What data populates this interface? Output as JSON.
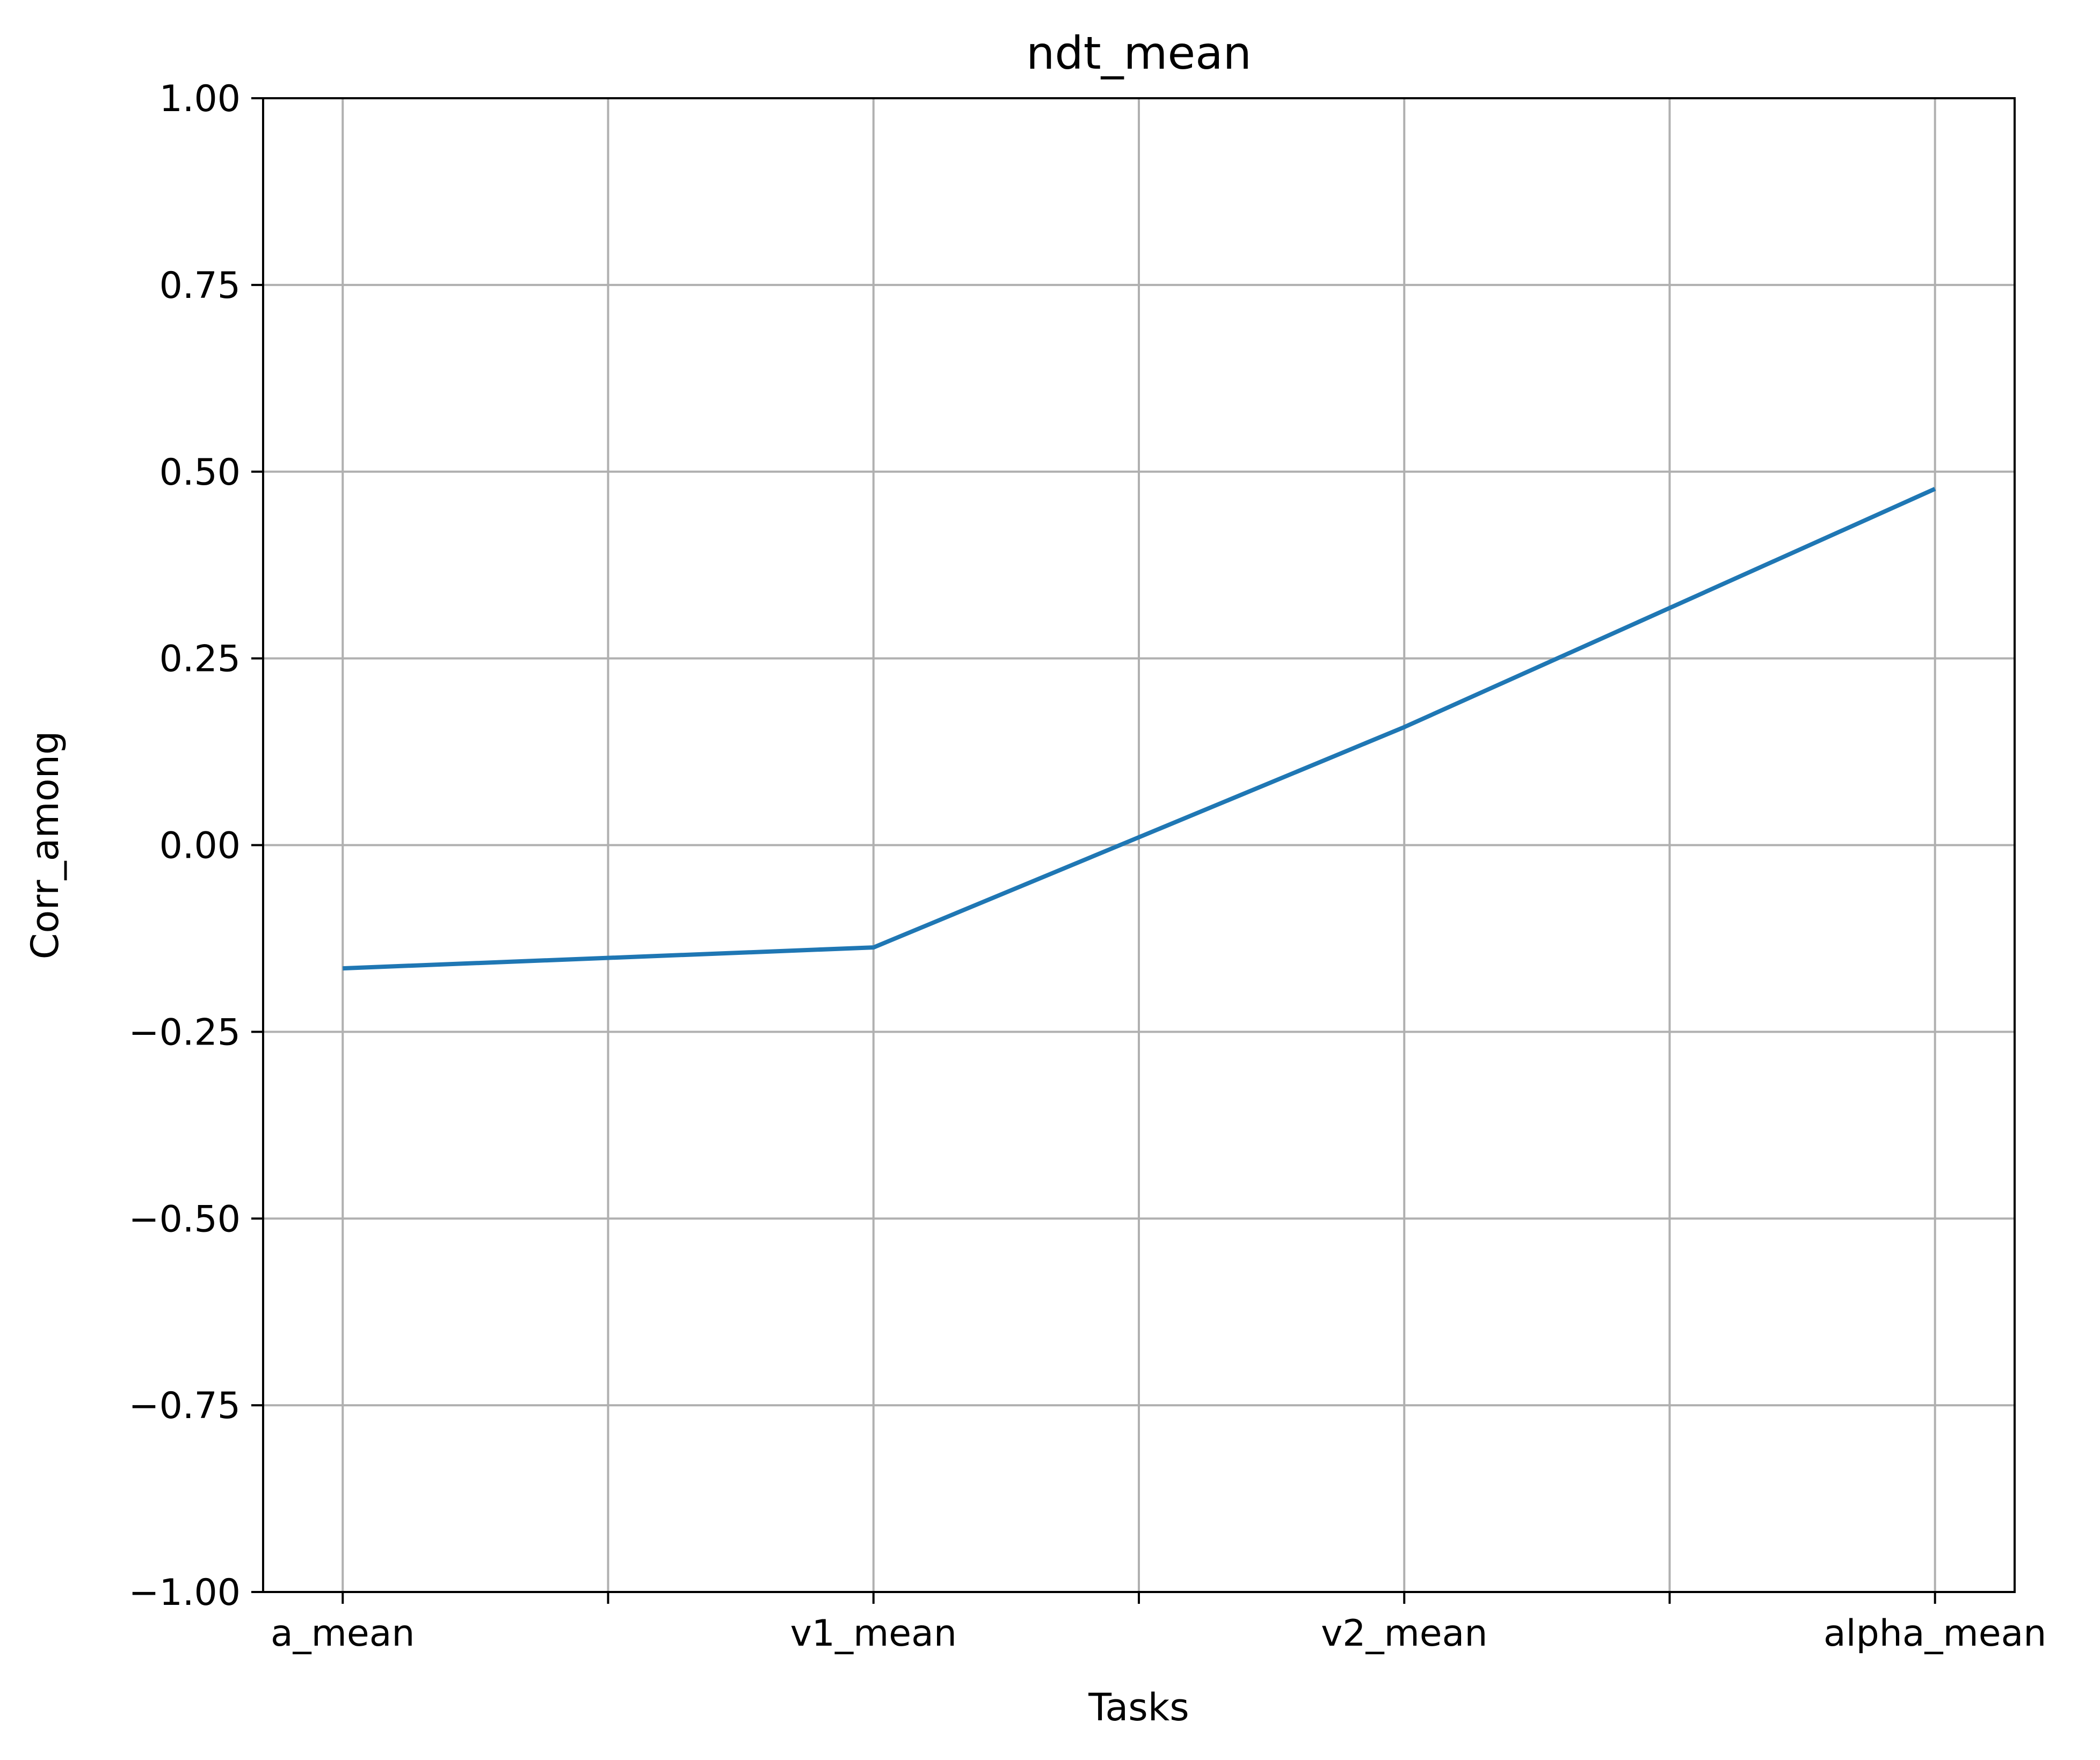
{
  "chart_data": {
    "type": "line",
    "title": "ndt_mean",
    "xlabel": "Tasks",
    "ylabel": "Corr_among",
    "x_ticks": [
      {
        "pos": 0,
        "label": "a_mean"
      },
      {
        "pos": 0.5,
        "label": ""
      },
      {
        "pos": 1,
        "label": "v1_mean"
      },
      {
        "pos": 1.5,
        "label": ""
      },
      {
        "pos": 2,
        "label": "v2_mean"
      },
      {
        "pos": 2.5,
        "label": ""
      },
      {
        "pos": 3,
        "label": "alpha_mean"
      }
    ],
    "xlim": [
      -0.15,
      3.15
    ],
    "ylim": [
      -1.0,
      1.0
    ],
    "y_ticks": [
      -1.0,
      -0.75,
      -0.5,
      -0.25,
      0.0,
      0.25,
      0.5,
      0.75,
      1.0
    ],
    "y_tick_labels": [
      "−1.00",
      "−0.75",
      "−0.50",
      "−0.25",
      "0.00",
      "0.25",
      "0.50",
      "0.75",
      "1.00"
    ],
    "grid": true,
    "series": [
      {
        "color": "#1f77b4",
        "x": [
          0,
          1,
          2,
          3
        ],
        "values": [
          -0.165,
          -0.137,
          0.158,
          0.477
        ]
      }
    ]
  }
}
